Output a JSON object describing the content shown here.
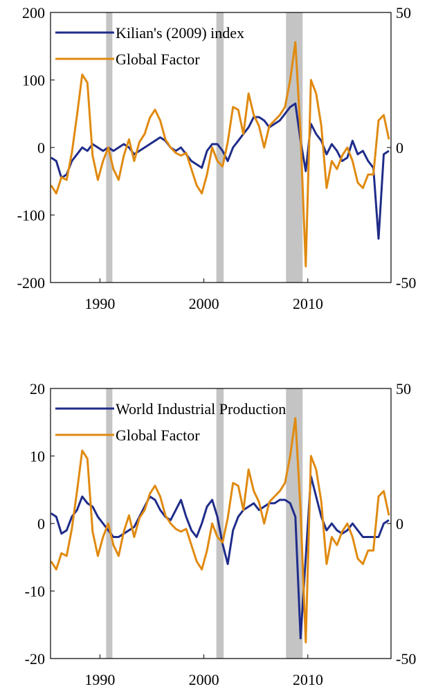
{
  "chart_data": [
    {
      "type": "line",
      "title": "",
      "xlabel": "",
      "x_ticks": [
        "1990",
        "2000",
        "2010"
      ],
      "xlim": [
        1985.25,
        2018.0
      ],
      "y_left": {
        "lim": [
          -200,
          200
        ],
        "ticks": [
          "200",
          "100",
          "0",
          "-100",
          "-200"
        ]
      },
      "y_right": {
        "lim": [
          -50,
          50
        ],
        "ticks": [
          "50",
          "0",
          "-50"
        ]
      },
      "recessions": [
        [
          1990.6,
          1991.2
        ],
        [
          2001.2,
          2001.9
        ],
        [
          2007.9,
          2009.5
        ]
      ],
      "legend": {
        "position": "top-left",
        "entries": [
          "Kilian's (2009) index",
          "Global Factor"
        ]
      },
      "series": [
        {
          "name": "Kilian's (2009) index",
          "axis": "left",
          "color": "#1f2c8a",
          "x": [
            1985.3,
            1985.8,
            1986.3,
            1986.8,
            1987.3,
            1987.8,
            1988.3,
            1988.8,
            1989.3,
            1989.8,
            1990.3,
            1990.8,
            1991.3,
            1991.8,
            1992.3,
            1992.8,
            1993.3,
            1993.8,
            1994.3,
            1994.8,
            1995.3,
            1995.8,
            1996.3,
            1996.8,
            1997.3,
            1997.8,
            1998.3,
            1998.8,
            1999.3,
            1999.8,
            2000.3,
            2000.8,
            2001.3,
            2001.8,
            2002.3,
            2002.8,
            2003.3,
            2003.8,
            2004.3,
            2004.8,
            2005.3,
            2005.8,
            2006.3,
            2006.8,
            2007.3,
            2007.8,
            2008.3,
            2008.8,
            2009.3,
            2009.8,
            2010.3,
            2010.8,
            2011.3,
            2011.8,
            2012.3,
            2012.8,
            2013.3,
            2013.8,
            2014.3,
            2014.8,
            2015.3,
            2015.8,
            2016.3,
            2016.8,
            2017.3,
            2017.8
          ],
          "y": [
            -15,
            -20,
            -45,
            -40,
            -20,
            -10,
            0,
            -5,
            5,
            0,
            -5,
            0,
            -5,
            0,
            5,
            0,
            -10,
            -5,
            0,
            5,
            10,
            15,
            10,
            0,
            -5,
            0,
            -10,
            -20,
            -25,
            -30,
            -5,
            5,
            5,
            -5,
            -20,
            0,
            10,
            20,
            30,
            45,
            45,
            40,
            30,
            35,
            40,
            50,
            60,
            65,
            10,
            -35,
            35,
            20,
            10,
            -10,
            5,
            -5,
            -20,
            -15,
            10,
            -10,
            -5,
            -20,
            -30,
            -135,
            -10,
            -5
          ]
        },
        {
          "name": "Global Factor",
          "axis": "right",
          "color": "#e08a10",
          "x": [
            1985.3,
            1985.8,
            1986.3,
            1986.8,
            1987.3,
            1987.8,
            1988.3,
            1988.8,
            1989.3,
            1989.8,
            1990.3,
            1990.8,
            1991.3,
            1991.8,
            1992.3,
            1992.8,
            1993.3,
            1993.8,
            1994.3,
            1994.8,
            1995.3,
            1995.8,
            1996.3,
            1996.8,
            1997.3,
            1997.8,
            1998.3,
            1998.8,
            1999.3,
            1999.8,
            2000.3,
            2000.8,
            2001.3,
            2001.8,
            2002.3,
            2002.8,
            2003.3,
            2003.8,
            2004.3,
            2004.8,
            2005.3,
            2005.8,
            2006.3,
            2006.8,
            2007.3,
            2007.8,
            2008.3,
            2008.8,
            2009.3,
            2009.8,
            2010.3,
            2010.8,
            2011.3,
            2011.8,
            2012.3,
            2012.8,
            2013.3,
            2013.8,
            2014.3,
            2014.8,
            2015.3,
            2015.8,
            2016.3,
            2016.8,
            2017.3,
            2017.8
          ],
          "y": [
            -14,
            -17,
            -11,
            -12,
            -2,
            12,
            27,
            24,
            -3,
            -12,
            -5,
            0,
            -8,
            -12,
            -3,
            3,
            -5,
            2,
            5,
            11,
            14,
            10,
            3,
            0,
            -2,
            -3,
            -2,
            -8,
            -14,
            -17,
            -10,
            0,
            -5,
            -7,
            2,
            15,
            14,
            5,
            20,
            12,
            8,
            0,
            8,
            10,
            12,
            15,
            25,
            39,
            5,
            -44,
            25,
            20,
            8,
            -15,
            -5,
            -8,
            -3,
            0,
            -5,
            -13,
            -15,
            -10,
            -10,
            10,
            12,
            3
          ]
        }
      ]
    },
    {
      "type": "line",
      "title": "",
      "xlabel": "",
      "x_ticks": [
        "1990",
        "2000",
        "2010"
      ],
      "xlim": [
        1985.25,
        2018.0
      ],
      "y_left": {
        "lim": [
          -20,
          20
        ],
        "ticks": [
          "20",
          "10",
          "0",
          "-10",
          "-20"
        ]
      },
      "y_right": {
        "lim": [
          -50,
          50
        ],
        "ticks": [
          "50",
          "0",
          "-50"
        ]
      },
      "recessions": [
        [
          1990.6,
          1991.2
        ],
        [
          2001.2,
          2001.9
        ],
        [
          2007.9,
          2009.5
        ]
      ],
      "legend": {
        "position": "top-left",
        "entries": [
          "World Industrial Production",
          "Global Factor"
        ]
      },
      "series": [
        {
          "name": "World Industrial Production",
          "axis": "left",
          "color": "#1f2c8a",
          "x": [
            1985.3,
            1985.8,
            1986.3,
            1986.8,
            1987.3,
            1987.8,
            1988.3,
            1988.8,
            1989.3,
            1989.8,
            1990.3,
            1990.8,
            1991.3,
            1991.8,
            1992.3,
            1992.8,
            1993.3,
            1993.8,
            1994.3,
            1994.8,
            1995.3,
            1995.8,
            1996.3,
            1996.8,
            1997.3,
            1997.8,
            1998.3,
            1998.8,
            1999.3,
            1999.8,
            2000.3,
            2000.8,
            2001.3,
            2001.8,
            2002.3,
            2002.8,
            2003.3,
            2003.8,
            2004.3,
            2004.8,
            2005.3,
            2005.8,
            2006.3,
            2006.8,
            2007.3,
            2007.8,
            2008.3,
            2008.8,
            2009.3,
            2009.8,
            2010.3,
            2010.8,
            2011.3,
            2011.8,
            2012.3,
            2012.8,
            2013.3,
            2013.8,
            2014.3,
            2014.8,
            2015.3,
            2015.8,
            2016.3,
            2016.8,
            2017.3,
            2017.8
          ],
          "y": [
            1.5,
            1,
            -1.5,
            -1,
            1,
            2,
            4,
            3,
            2.5,
            1,
            0,
            -1,
            -2,
            -2,
            -1.5,
            -1,
            -0.5,
            1,
            2.5,
            4,
            3.5,
            2,
            1,
            0.5,
            2,
            3.5,
            1,
            -1,
            -2,
            0,
            2.5,
            3.5,
            1,
            -3,
            -6,
            -1,
            1,
            2,
            2.5,
            3,
            2,
            2.5,
            3,
            3,
            3.5,
            3.5,
            3,
            1,
            -17,
            -5,
            7,
            4,
            1,
            -1,
            0,
            -1,
            -1.5,
            -1,
            0,
            -1,
            -2,
            -2,
            -2,
            -2,
            0,
            0.5
          ]
        },
        {
          "name": "Global Factor",
          "axis": "right",
          "color": "#e08a10",
          "x": [
            1985.3,
            1985.8,
            1986.3,
            1986.8,
            1987.3,
            1987.8,
            1988.3,
            1988.8,
            1989.3,
            1989.8,
            1990.3,
            1990.8,
            1991.3,
            1991.8,
            1992.3,
            1992.8,
            1993.3,
            1993.8,
            1994.3,
            1994.8,
            1995.3,
            1995.8,
            1996.3,
            1996.8,
            1997.3,
            1997.8,
            1998.3,
            1998.8,
            1999.3,
            1999.8,
            2000.3,
            2000.8,
            2001.3,
            2001.8,
            2002.3,
            2002.8,
            2003.3,
            2003.8,
            2004.3,
            2004.8,
            2005.3,
            2005.8,
            2006.3,
            2006.8,
            2007.3,
            2007.8,
            2008.3,
            2008.8,
            2009.3,
            2009.8,
            2010.3,
            2010.8,
            2011.3,
            2011.8,
            2012.3,
            2012.8,
            2013.3,
            2013.8,
            2014.3,
            2014.8,
            2015.3,
            2015.8,
            2016.3,
            2016.8,
            2017.3,
            2017.8
          ],
          "y": [
            -14,
            -17,
            -11,
            -12,
            -2,
            12,
            27,
            24,
            -3,
            -12,
            -5,
            0,
            -8,
            -12,
            -3,
            3,
            -5,
            2,
            5,
            11,
            14,
            10,
            3,
            0,
            -2,
            -3,
            -2,
            -8,
            -14,
            -17,
            -10,
            0,
            -5,
            -7,
            2,
            15,
            14,
            5,
            20,
            12,
            8,
            0,
            8,
            10,
            12,
            15,
            25,
            39,
            5,
            -44,
            25,
            20,
            8,
            -15,
            -5,
            -8,
            -3,
            0,
            -5,
            -13,
            -15,
            -10,
            -10,
            10,
            12,
            3
          ]
        }
      ]
    }
  ]
}
